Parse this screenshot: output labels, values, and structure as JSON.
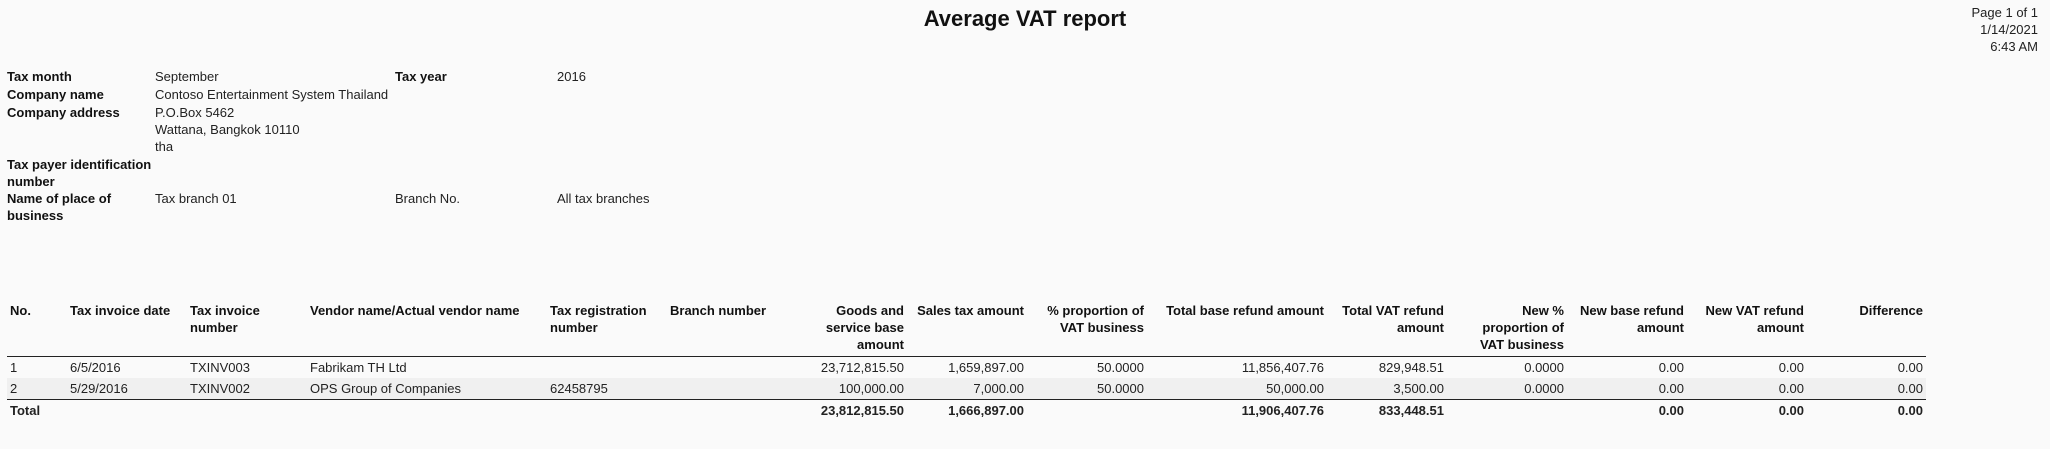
{
  "title": "Average VAT report",
  "page_info": {
    "page": "Page 1 of 1",
    "date": "1/14/2021",
    "time": "6:43 AM"
  },
  "header": {
    "tax_month_label": "Tax month",
    "tax_month_value": "September",
    "tax_year_label": "Tax year",
    "tax_year_value": "2016",
    "company_name_label": "Company name",
    "company_name_value": "Contoso Entertainment System Thailand",
    "company_address_label": "Company address",
    "company_address_line1": "P.O.Box 5462",
    "company_address_line2": "Wattana, Bangkok 10110",
    "company_address_line3": "tha",
    "taxpayer_id_label_line1": "Tax payer identification",
    "taxpayer_id_label_line2": "number",
    "place_label_line1": "Name of place of",
    "place_label_line2": "business",
    "place_value": "Tax branch 01",
    "branch_no_label": "Branch No.",
    "branch_no_value": "All tax branches"
  },
  "table": {
    "columns": [
      [
        "No."
      ],
      [
        "Tax invoice date"
      ],
      [
        "Tax invoice",
        "number"
      ],
      [
        "Vendor name/Actual vendor name"
      ],
      [
        "Tax registration",
        "number"
      ],
      [
        "Branch number"
      ],
      [
        "Goods and",
        "service base",
        "amount"
      ],
      [
        "Sales tax amount"
      ],
      [
        "% proportion of",
        "VAT business"
      ],
      [
        "Total base refund amount"
      ],
      [
        "Total VAT refund",
        "amount"
      ],
      [
        "New %",
        "proportion of",
        "VAT business"
      ],
      [
        "New base refund",
        "amount"
      ],
      [
        "New VAT refund",
        "amount"
      ],
      [
        "Difference"
      ]
    ],
    "rows": [
      [
        "1",
        "6/5/2016",
        "TXINV003",
        "Fabrikam TH Ltd",
        "",
        "",
        "23,712,815.50",
        "1,659,897.00",
        "50.0000",
        "11,856,407.76",
        "829,948.51",
        "0.0000",
        "0.00",
        "0.00",
        "0.00"
      ],
      [
        "2",
        "5/29/2016",
        "TXINV002",
        "OPS Group of Companies",
        "62458795",
        "",
        "100,000.00",
        "7,000.00",
        "50.0000",
        "50,000.00",
        "3,500.00",
        "0.0000",
        "0.00",
        "0.00",
        "0.00"
      ]
    ],
    "total": [
      "Total",
      "",
      "",
      "",
      "",
      "",
      "23,812,815.50",
      "1,666,897.00",
      "",
      "11,906,407.76",
      "833,448.51",
      "",
      "0.00",
      "0.00",
      "0.00"
    ]
  }
}
